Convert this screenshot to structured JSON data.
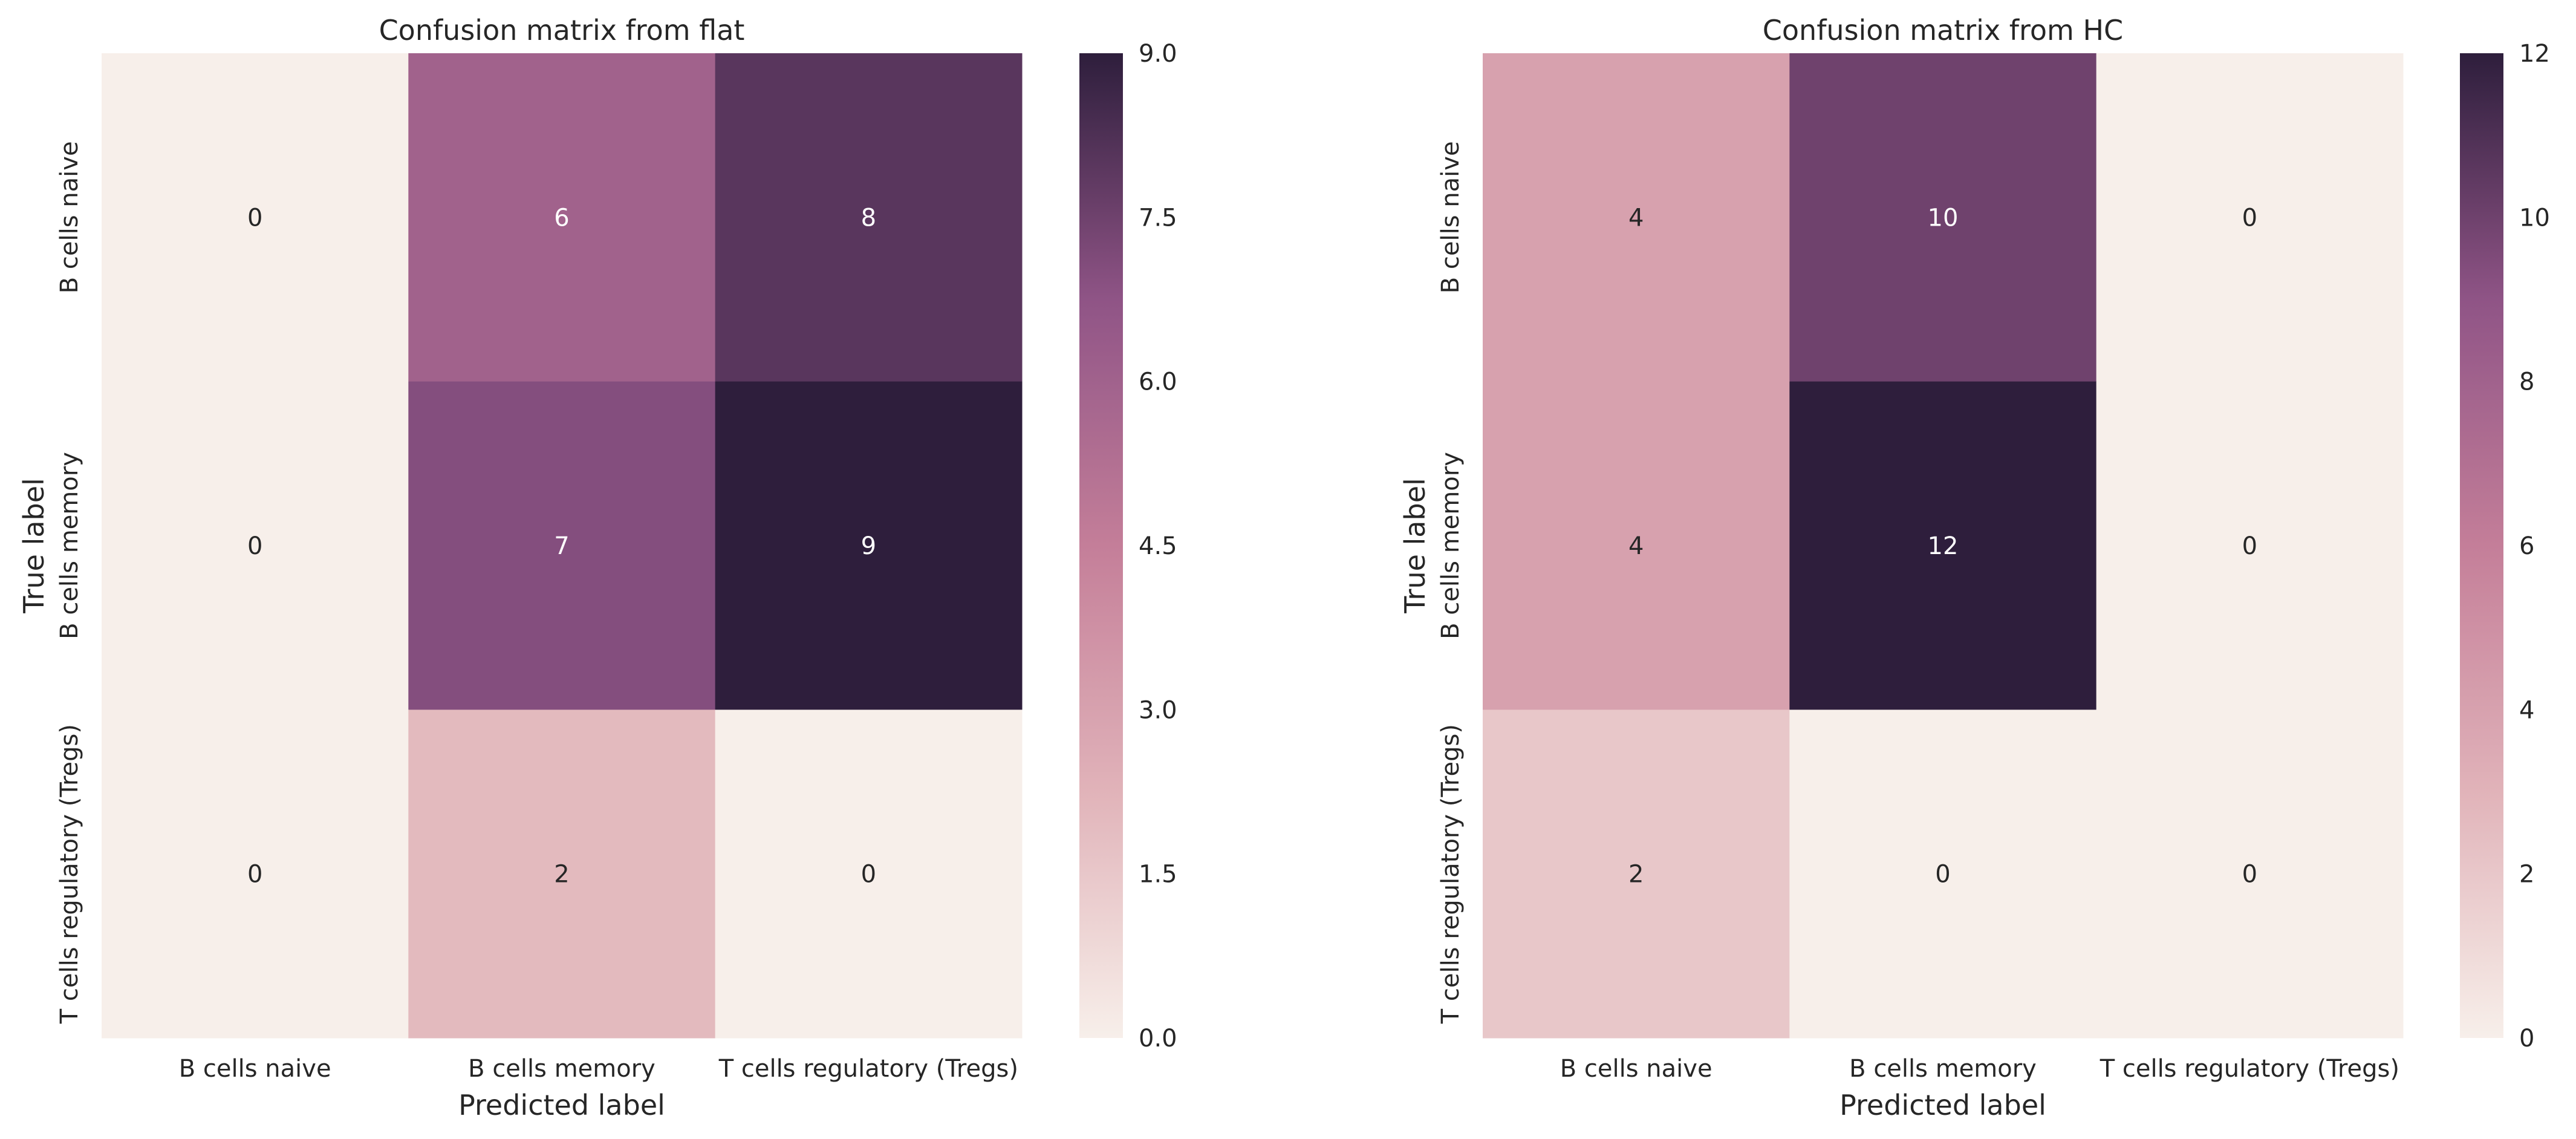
{
  "chart_data": [
    {
      "type": "heatmap",
      "title": "Confusion matrix from flat",
      "xlabel": "Predicted label",
      "ylabel": "True label",
      "x_categories": [
        "B cells naive",
        "B cells memory",
        "T cells regulatory (Tregs)"
      ],
      "y_categories": [
        "B cells naive",
        "B cells memory",
        "T cells regulatory (Tregs)"
      ],
      "values": [
        [
          0,
          6,
          8
        ],
        [
          0,
          7,
          9
        ],
        [
          0,
          2,
          0
        ]
      ],
      "colorbar": {
        "vmin": 0,
        "vmax": 9,
        "ticks": [
          "0.0",
          "1.5",
          "3.0",
          "4.5",
          "6.0",
          "7.5",
          "9.0"
        ]
      }
    },
    {
      "type": "heatmap",
      "title": "Confusion matrix from HC",
      "xlabel": "Predicted label",
      "ylabel": "True label",
      "x_categories": [
        "B cells naive",
        "B cells memory",
        "T cells regulatory (Tregs)"
      ],
      "y_categories": [
        "B cells naive",
        "B cells memory",
        "T cells regulatory (Tregs)"
      ],
      "values": [
        [
          4,
          10,
          0
        ],
        [
          4,
          12,
          0
        ],
        [
          2,
          0,
          0
        ]
      ],
      "colorbar": {
        "vmin": 0,
        "vmax": 12,
        "ticks": [
          "0",
          "2",
          "4",
          "6",
          "8",
          "10",
          "12"
        ]
      }
    }
  ],
  "colors": {
    "low": "#f7efea",
    "mid": "#e1b3b9",
    "mid2": "#c47e99",
    "mid3": "#8f5486",
    "high": "#2e1e3c",
    "text_dark": "#262626",
    "text_light": "#ffffff"
  }
}
